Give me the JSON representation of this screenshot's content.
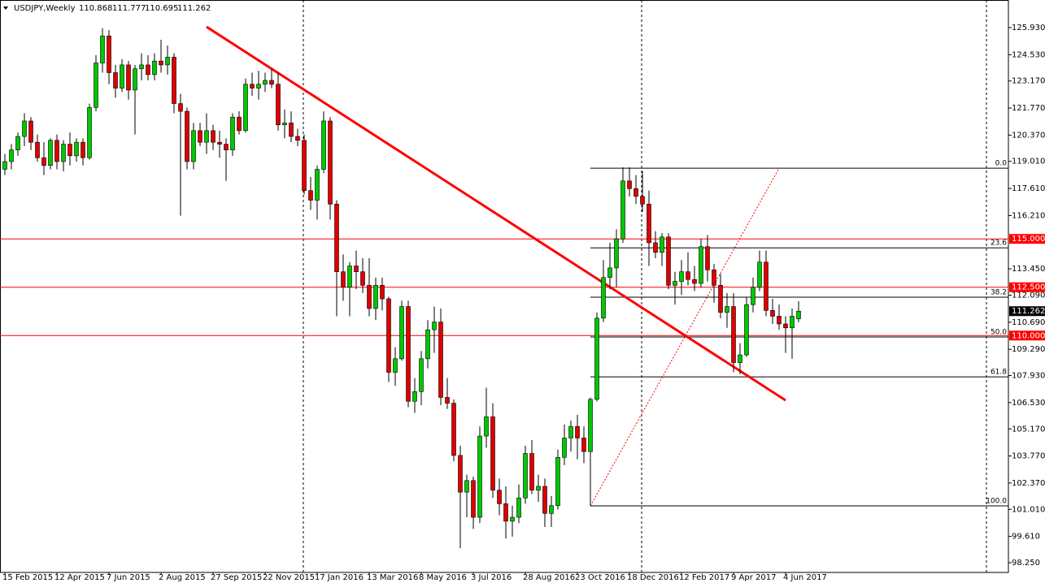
{
  "chart_data": {
    "type": "candlestick",
    "symbol": "USDJPY,Weekly",
    "categories": [
      "15 Feb 2015",
      null,
      null,
      null,
      null,
      null,
      null,
      null,
      "12 Apr 2015",
      null,
      null,
      null,
      null,
      null,
      null,
      null,
      "7 Jun 2015",
      null,
      null,
      null,
      null,
      null,
      null,
      null,
      "2 Aug 2015",
      null,
      null,
      null,
      null,
      null,
      null,
      null,
      "27 Sep 2015",
      null,
      null,
      null,
      null,
      null,
      null,
      null,
      "22 Nov 2015",
      null,
      null,
      null,
      null,
      null,
      null,
      null,
      "17 Jan 2016",
      null,
      null,
      null,
      null,
      null,
      null,
      null,
      "13 Mar 2016",
      null,
      null,
      null,
      null,
      null,
      null,
      null,
      "8 May 2016",
      null,
      null,
      null,
      null,
      null,
      null,
      null,
      "3 Jul 2016",
      null,
      null,
      null,
      null,
      null,
      null,
      null,
      "28 Aug 2016",
      null,
      null,
      null,
      null,
      null,
      null,
      null,
      "23 Oct 2016",
      null,
      null,
      null,
      null,
      null,
      null,
      null,
      "18 Dec 2016",
      null,
      null,
      null,
      null,
      null,
      null,
      null,
      "12 Feb 2017",
      null,
      null,
      null,
      null,
      null,
      null,
      null,
      "9 Apr 2017",
      null,
      null,
      null,
      null,
      null,
      null,
      null,
      "4 Jun 2017",
      null,
      null
    ],
    "open": [
      118.6,
      119.0,
      119.6,
      120.3,
      121.1,
      120.0,
      119.2,
      118.8,
      120.1,
      119.0,
      119.9,
      119.3,
      120.0,
      119.2,
      121.8,
      124.1,
      125.5,
      123.6,
      122.8,
      124.0,
      122.7,
      123.8,
      124.0,
      123.5,
      124.2,
      124.0,
      124.4,
      122.0,
      121.6,
      119.0,
      120.6,
      120.0,
      120.6,
      120.0,
      119.9,
      119.6,
      121.3,
      120.6,
      123.0,
      122.8,
      123.0,
      123.2,
      123.0,
      120.9,
      121.0,
      120.3,
      120.1,
      117.5,
      117.0,
      118.6,
      121.1,
      116.8,
      113.3,
      112.5,
      113.6,
      113.3,
      112.6,
      111.4,
      112.6,
      111.9,
      108.1,
      108.8,
      111.5,
      106.6,
      107.1,
      108.8,
      110.3,
      110.7,
      106.8,
      106.5,
      103.8,
      101.9,
      102.5,
      100.6,
      104.8,
      105.8,
      102.0,
      101.3,
      100.4,
      100.6,
      101.6,
      103.9,
      102.0,
      102.2,
      100.8,
      101.2,
      103.7,
      104.7,
      105.3,
      104.7,
      104.0,
      106.7,
      110.9,
      113.0,
      113.5,
      115.0,
      118.0,
      117.6,
      117.2,
      116.8,
      114.8,
      114.3,
      115.1,
      112.6,
      112.8,
      113.3,
      112.9,
      112.7,
      114.6,
      113.4,
      112.6,
      111.2,
      111.5,
      108.6,
      109.0,
      111.6,
      112.5,
      113.8,
      111.3,
      111.0,
      110.6,
      110.4,
      110.868
    ],
    "high": [
      119.4,
      119.9,
      120.5,
      121.5,
      121.3,
      120.4,
      120.0,
      120.2,
      120.4,
      120.1,
      120.5,
      120.2,
      120.2,
      122.0,
      124.5,
      125.9,
      125.8,
      124.0,
      124.3,
      124.2,
      124.0,
      124.6,
      124.5,
      124.6,
      125.3,
      125.0,
      124.6,
      122.5,
      121.8,
      121.0,
      121.0,
      121.5,
      120.9,
      120.6,
      120.2,
      121.5,
      121.6,
      123.3,
      123.6,
      123.7,
      123.6,
      123.8,
      123.6,
      121.7,
      121.6,
      120.7,
      120.4,
      118.2,
      118.8,
      121.6,
      121.3,
      117.0,
      114.2,
      113.8,
      114.4,
      114.0,
      114.0,
      113.0,
      113.0,
      112.0,
      109.4,
      111.8,
      111.8,
      107.8,
      109.2,
      110.8,
      111.5,
      111.4,
      107.8,
      106.7,
      104.3,
      102.8,
      102.7,
      105.3,
      107.3,
      106.5,
      102.6,
      102.2,
      101.2,
      102.3,
      104.3,
      104.6,
      102.8,
      102.6,
      101.7,
      104.1,
      105.4,
      105.6,
      105.9,
      105.3,
      106.8,
      111.2,
      113.9,
      114.8,
      115.5,
      118.7,
      118.7,
      118.3,
      118.5,
      117.5,
      115.4,
      115.3,
      115.3,
      113.3,
      113.9,
      114.3,
      113.6,
      115.0,
      115.2,
      113.7,
      113.2,
      112.2,
      112.2,
      109.6,
      112.0,
      113.0,
      114.4,
      114.4,
      111.9,
      111.6,
      111.0,
      111.4,
      111.777
    ],
    "low": [
      118.3,
      118.6,
      119.3,
      119.8,
      119.6,
      119.0,
      118.3,
      118.6,
      118.6,
      118.5,
      118.8,
      119.0,
      118.8,
      119.1,
      121.6,
      123.6,
      123.0,
      122.3,
      122.6,
      122.2,
      120.4,
      123.2,
      123.2,
      123.2,
      123.6,
      123.5,
      121.5,
      116.2,
      118.6,
      118.6,
      119.8,
      119.4,
      119.6,
      119.2,
      118.0,
      119.3,
      120.4,
      120.5,
      122.4,
      122.2,
      122.6,
      122.8,
      120.6,
      120.2,
      120.0,
      119.8,
      117.3,
      116.5,
      116.0,
      118.4,
      116.0,
      111.0,
      111.8,
      111.0,
      112.4,
      112.2,
      111.0,
      110.8,
      111.3,
      107.6,
      107.4,
      108.7,
      106.3,
      106.0,
      106.4,
      108.3,
      109.1,
      106.4,
      106.2,
      103.5,
      99.0,
      100.6,
      100.0,
      100.3,
      104.2,
      101.6,
      100.7,
      99.5,
      99.6,
      100.3,
      101.3,
      101.8,
      101.4,
      100.1,
      100.1,
      101.0,
      103.3,
      104.0,
      103.6,
      103.4,
      101.2,
      106.6,
      110.7,
      112.4,
      112.5,
      114.8,
      117.2,
      116.8,
      116.4,
      113.6,
      114.0,
      113.6,
      112.4,
      111.6,
      112.1,
      112.6,
      112.3,
      112.5,
      112.8,
      111.7,
      110.9,
      110.4,
      108.1,
      108.0,
      108.9,
      111.2,
      112.3,
      111.0,
      110.6,
      110.3,
      109.1,
      108.8,
      110.695
    ],
    "close": [
      119.0,
      119.6,
      120.3,
      121.1,
      120.0,
      119.2,
      118.8,
      120.1,
      119.0,
      119.9,
      119.3,
      120.0,
      119.2,
      121.8,
      124.1,
      125.5,
      123.6,
      122.8,
      124.0,
      122.7,
      123.8,
      124.0,
      123.5,
      124.2,
      124.0,
      124.4,
      122.0,
      121.6,
      119.0,
      120.6,
      120.0,
      120.6,
      120.0,
      119.9,
      119.6,
      121.3,
      120.6,
      123.0,
      122.8,
      123.0,
      123.2,
      123.0,
      120.9,
      121.0,
      120.3,
      120.1,
      117.5,
      117.0,
      118.6,
      121.1,
      116.8,
      113.3,
      112.5,
      113.6,
      113.3,
      112.6,
      111.4,
      112.6,
      111.9,
      108.1,
      108.8,
      111.5,
      106.6,
      107.1,
      108.8,
      110.3,
      110.7,
      106.8,
      106.5,
      103.8,
      101.9,
      102.5,
      100.6,
      104.8,
      105.8,
      102.0,
      101.3,
      100.4,
      100.6,
      101.6,
      103.9,
      102.0,
      102.2,
      100.8,
      101.2,
      103.7,
      104.7,
      105.3,
      104.7,
      104.0,
      106.7,
      110.9,
      113.0,
      113.5,
      115.0,
      118.0,
      117.6,
      117.2,
      116.8,
      114.8,
      114.3,
      115.1,
      112.6,
      112.8,
      113.3,
      112.9,
      112.7,
      114.6,
      113.4,
      112.6,
      111.2,
      111.5,
      108.6,
      109.0,
      111.6,
      112.5,
      113.8,
      111.3,
      111.0,
      110.6,
      110.4,
      111.0,
      111.262
    ],
    "up_color": "#00c800",
    "down_color": "#e00000",
    "ylim": [
      97.746,
      127.358
    ],
    "yticks": [
      {
        "value": 125.93,
        "label": "125.930"
      },
      {
        "value": 124.53,
        "label": "124.530"
      },
      {
        "value": 123.17,
        "label": "123.170"
      },
      {
        "value": 121.77,
        "label": "121.770"
      },
      {
        "value": 120.37,
        "label": "120.370"
      },
      {
        "value": 119.01,
        "label": "119.010"
      },
      {
        "value": 117.61,
        "label": "117.610"
      },
      {
        "value": 116.21,
        "label": "116.210"
      },
      {
        "value": 113.45,
        "label": "113.450"
      },
      {
        "value": 112.09,
        "label": "112.090"
      },
      {
        "value": 110.69,
        "label": "110.690"
      },
      {
        "value": 109.29,
        "label": "109.290"
      },
      {
        "value": 107.93,
        "label": "107.930"
      },
      {
        "value": 106.53,
        "label": "106.530"
      },
      {
        "value": 105.17,
        "label": "105.170"
      },
      {
        "value": 103.77,
        "label": "103.770"
      },
      {
        "value": 102.37,
        "label": "102.370"
      },
      {
        "value": 101.01,
        "label": "101.010"
      },
      {
        "value": 99.61,
        "label": "99.610"
      },
      {
        "value": 98.25,
        "label": "98.250"
      }
    ],
    "hlines": [
      {
        "value": 115,
        "label": "115.000"
      },
      {
        "value": 112.5,
        "label": "112.500"
      },
      {
        "value": 110,
        "label": "110.000"
      }
    ],
    "hline_color": "#ff0000",
    "trendline": {
      "from": [
        31,
        125.97
      ],
      "to": [
        120,
        106.65
      ],
      "color": "#ff0000"
    },
    "fibo": {
      "start": 90,
      "end": 119,
      "high": 118.66,
      "low": 101.19,
      "levels": [
        {
          "value": 0,
          "label": "0.0"
        },
        23.6,
        38.2,
        {
          "value": 50,
          "label": "50.0"
        },
        61.8,
        {
          "value": 100,
          "label": "100.0"
        }
      ]
    }
  }
}
